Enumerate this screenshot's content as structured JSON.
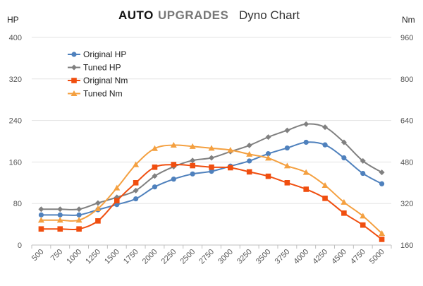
{
  "header": {
    "brand_part1": "AUTO",
    "brand_part2": "UPGRADES",
    "subtitle": "Dyno Chart",
    "brand_color1": "#111111",
    "brand_color2": "#777777"
  },
  "chart_data": {
    "type": "line",
    "title": "Dyno Chart",
    "xlabel": "",
    "ylabel_left": "HP",
    "ylabel_right": "Nm",
    "ylim_left": [
      0,
      400
    ],
    "ylim_right": [
      160,
      960
    ],
    "yticks_left": [
      0,
      80,
      160,
      240,
      320,
      400
    ],
    "yticks_right": [
      160,
      320,
      480,
      640,
      800,
      960
    ],
    "x": [
      500,
      750,
      1000,
      1250,
      1500,
      1750,
      2000,
      2250,
      2500,
      2750,
      3000,
      3250,
      3500,
      3750,
      4000,
      4250,
      4500,
      4750,
      5000
    ],
    "grid": true,
    "legend_position": "top-left",
    "series": [
      {
        "name": "Original HP",
        "axis": "left",
        "color": "#4f81bd",
        "marker": "circle",
        "values": [
          58,
          58,
          58,
          68,
          78,
          89,
          112,
          127,
          137,
          142,
          152,
          162,
          176,
          187,
          198,
          193,
          168,
          138,
          118
        ]
      },
      {
        "name": "Tuned HP",
        "axis": "left",
        "color": "#808080",
        "marker": "diamond",
        "values": [
          69,
          69,
          69,
          81,
          92,
          105,
          133,
          151,
          163,
          168,
          180,
          192,
          208,
          221,
          233,
          227,
          198,
          162,
          140
        ]
      },
      {
        "name": "Original Nm",
        "axis": "right",
        "color": "#f04e0f",
        "marker": "square",
        "values": [
          222,
          222,
          222,
          253,
          331,
          400,
          460,
          470,
          466,
          460,
          458,
          442,
          425,
          400,
          375,
          340,
          283,
          237,
          182
        ]
      },
      {
        "name": "Tuned Nm",
        "axis": "right",
        "color": "#f4a040",
        "marker": "triangle",
        "values": [
          256,
          256,
          256,
          300,
          380,
          470,
          532,
          545,
          540,
          533,
          526,
          510,
          495,
          465,
          440,
          390,
          325,
          272,
          205
        ]
      }
    ]
  }
}
